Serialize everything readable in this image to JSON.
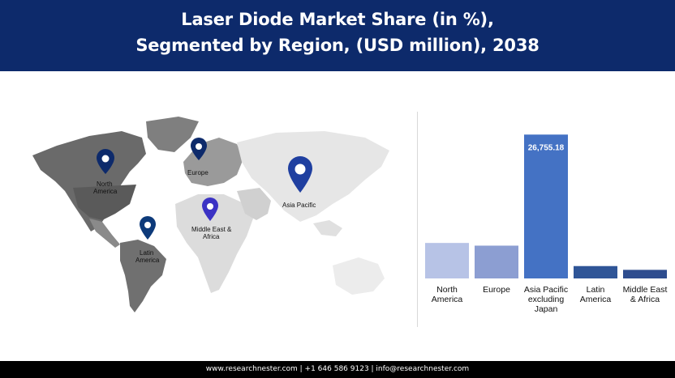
{
  "header": {
    "title_line1": "Laser Diode Market Share (in %),",
    "title_line2": "Segmented by Region, (USD million), 2038"
  },
  "map": {
    "pins": [
      {
        "label_lines": [
          "North",
          "America"
        ],
        "color": "#0d2a6b"
      },
      {
        "label_lines": [
          "Europe"
        ],
        "color": "#0d2a6b"
      },
      {
        "label_lines": [
          "Asia Pacific"
        ],
        "color": "#1f3fa0"
      },
      {
        "label_lines": [
          "Middle East &",
          "Africa"
        ],
        "color": "#3b32c4"
      },
      {
        "label_lines": [
          "Latin",
          "America"
        ],
        "color": "#0d3a7a"
      }
    ]
  },
  "chart_data": {
    "type": "bar",
    "categories": [
      "North America",
      "Europe",
      "Asia Pacific excluding Japan",
      "Latin America",
      "Middle East & Africa"
    ],
    "category_label_lines": [
      [
        "North",
        "America"
      ],
      [
        "Europe"
      ],
      [
        "Asia Pacific",
        "excluding",
        "Japan"
      ],
      [
        "Latin",
        "America"
      ],
      [
        "Middle East",
        "& Africa"
      ]
    ],
    "values": [
      6600,
      6100,
      26755.18,
      2300,
      1600
    ],
    "data_labels": [
      "",
      "",
      "26,755.18",
      "",
      ""
    ],
    "colors": [
      "#b7c3e6",
      "#8c9ed2",
      "#4472c4",
      "#2f5597",
      "#2e4d8f"
    ],
    "ylim": [
      0,
      28000
    ],
    "grid": false,
    "legend": false
  },
  "footer": {
    "text": "www.researchnester.com | +1 646 586 9123 | info@researchnester.com"
  }
}
